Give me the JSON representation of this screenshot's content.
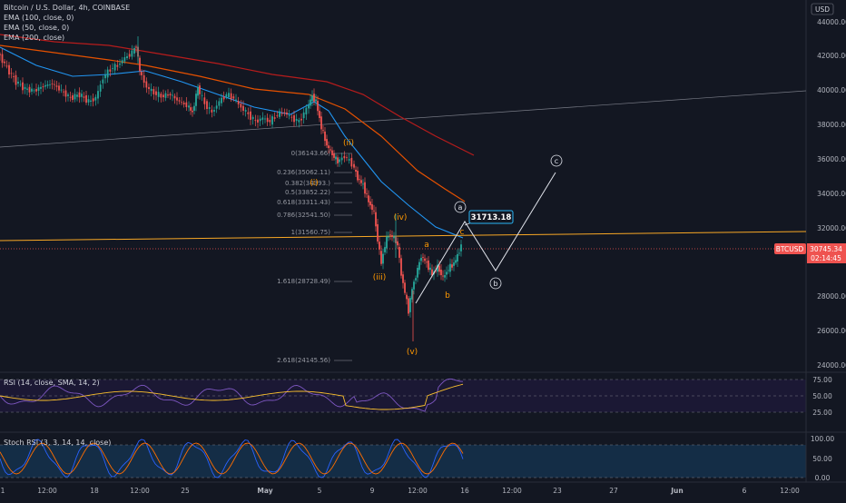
{
  "legend": {
    "title": "Bitcoin / U.S. Dollar, 4h, COINBASE",
    "ema100": "EMA (100, close, 0)",
    "ema50": "EMA (50, close, 0)",
    "ema200": "EMA (200, close)"
  },
  "currency": "USD",
  "price_ticks": [
    "44000.00",
    "42000.00",
    "40000.00",
    "38000.00",
    "36000.00",
    "34000.00",
    "32000.00",
    "28000.00",
    "26000.00",
    "24000.00"
  ],
  "symbol_badge": "BTCUSD",
  "last_price": "30745.34",
  "countdown": "02:14:45",
  "target_label": "31713.18",
  "fib_labels": [
    "0(36143.66)",
    "0.236(35062.11)",
    "0.382(34393.)",
    "0.5(33852.22)",
    "0.618(33311.43)",
    "0.786(32541.50)",
    "1(31560.75)",
    "1.618(28728.49)",
    "2.618(24145.56)"
  ],
  "wave_labels": {
    "ii": "(ii)",
    "i": "(i)",
    "iii": "(iii)",
    "iv": "(iv)",
    "v": "(v)",
    "a_small": "a",
    "b_small": "b",
    "c_small": "c",
    "a_circle": "a",
    "b_circle": "b",
    "c_circle": "c"
  },
  "rsi": {
    "label": "RSI (14, close, SMA, 14, 2)",
    "ticks": [
      "75.00",
      "50.00",
      "25.00"
    ]
  },
  "stoch": {
    "label": "Stoch RSI (3, 3, 14, 14, close)",
    "ticks": [
      "100.00",
      "50.00",
      "0.00"
    ]
  },
  "time_ticks": [
    "1",
    "12:00",
    "18",
    "12:00",
    "25",
    "May",
    "5",
    "9",
    "12:00",
    "16",
    "12:00",
    "23",
    "27",
    "Jun",
    "6",
    "12:00"
  ],
  "colors": {
    "background": "#131722",
    "up": "#26a69a",
    "down": "#ef5350",
    "ema50": "#2196f3",
    "ema100": "#e65100",
    "ema200": "#b71c1c",
    "wave": "#ff9800",
    "rsi": "#7e57c2",
    "rsi_ma": "#fbc02d"
  }
}
